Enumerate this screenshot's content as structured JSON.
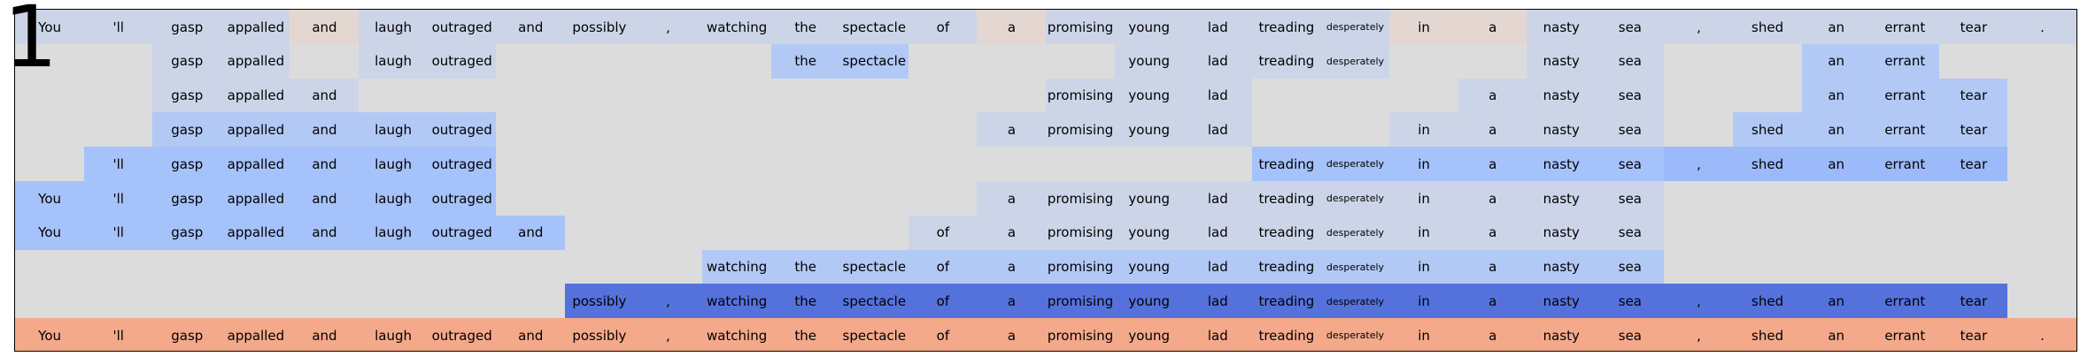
{
  "panel_number": "1",
  "tokens": [
    "You",
    "'ll",
    "gasp",
    "appalled",
    "and",
    "laugh",
    "outraged",
    "and",
    "possibly",
    ",",
    "watching",
    "the",
    "spectacle",
    "of",
    "a",
    "promising",
    "young",
    "lad",
    "treading",
    "desperately",
    "in",
    "a",
    "nasty",
    "sea",
    ",",
    "shed",
    "an",
    "errant",
    "tear",
    "."
  ],
  "small_tokens": [
    19
  ],
  "row_count": 10,
  "palette": {
    "0": "#dcdcdc",
    "1": "#ccd5e8",
    "2": "#e4d7d1",
    "3": "#b2c9f6",
    "4": "#a6c2fa",
    "5": "#9cb9fa",
    "6": "#5572dc",
    "7": "#f4a98b"
  },
  "rows": [
    [
      1,
      1,
      1,
      1,
      2,
      1,
      1,
      1,
      1,
      1,
      1,
      1,
      1,
      1,
      2,
      1,
      1,
      1,
      1,
      1,
      2,
      2,
      1,
      1,
      1,
      1,
      1,
      1,
      1,
      1
    ],
    [
      0,
      0,
      1,
      1,
      0,
      1,
      1,
      0,
      0,
      0,
      0,
      3,
      3,
      0,
      0,
      0,
      1,
      1,
      1,
      1,
      0,
      0,
      1,
      1,
      0,
      0,
      3,
      3,
      0,
      0
    ],
    [
      0,
      0,
      1,
      1,
      1,
      0,
      0,
      0,
      0,
      0,
      0,
      0,
      0,
      0,
      0,
      1,
      1,
      1,
      0,
      0,
      0,
      1,
      1,
      1,
      0,
      0,
      3,
      3,
      3,
      0
    ],
    [
      0,
      0,
      3,
      3,
      3,
      3,
      3,
      0,
      0,
      0,
      0,
      0,
      0,
      0,
      1,
      1,
      1,
      1,
      0,
      0,
      1,
      1,
      1,
      1,
      0,
      3,
      3,
      3,
      3,
      0
    ],
    [
      0,
      4,
      4,
      4,
      4,
      4,
      4,
      0,
      0,
      0,
      0,
      0,
      0,
      0,
      0,
      0,
      0,
      0,
      4,
      4,
      4,
      4,
      4,
      4,
      5,
      5,
      5,
      5,
      5,
      0
    ],
    [
      4,
      4,
      4,
      4,
      4,
      4,
      4,
      0,
      0,
      0,
      0,
      0,
      0,
      0,
      1,
      1,
      1,
      1,
      1,
      1,
      1,
      1,
      1,
      1,
      0,
      0,
      0,
      0,
      0,
      0
    ],
    [
      4,
      4,
      4,
      4,
      4,
      4,
      4,
      4,
      0,
      0,
      0,
      0,
      0,
      1,
      1,
      1,
      1,
      1,
      1,
      1,
      1,
      1,
      1,
      1,
      0,
      0,
      0,
      0,
      0,
      0
    ],
    [
      0,
      0,
      0,
      0,
      0,
      0,
      0,
      0,
      0,
      0,
      3,
      3,
      3,
      3,
      3,
      3,
      3,
      3,
      3,
      3,
      3,
      3,
      3,
      3,
      0,
      0,
      0,
      0,
      0,
      0
    ],
    [
      0,
      0,
      0,
      0,
      0,
      0,
      0,
      0,
      6,
      6,
      6,
      6,
      6,
      6,
      6,
      6,
      6,
      6,
      6,
      6,
      6,
      6,
      6,
      6,
      6,
      6,
      6,
      6,
      6,
      0
    ],
    [
      7,
      7,
      7,
      7,
      7,
      7,
      7,
      7,
      7,
      7,
      7,
      7,
      7,
      7,
      7,
      7,
      7,
      7,
      7,
      7,
      7,
      7,
      7,
      7,
      7,
      7,
      7,
      7,
      7,
      7
    ]
  ],
  "labels_shown": [
    [
      1,
      1,
      1,
      1,
      1,
      1,
      1,
      1,
      1,
      1,
      1,
      1,
      1,
      1,
      1,
      1,
      1,
      1,
      1,
      1,
      1,
      1,
      1,
      1,
      1,
      1,
      1,
      1,
      1,
      1
    ],
    [
      0,
      0,
      1,
      1,
      0,
      1,
      1,
      0,
      0,
      0,
      0,
      1,
      1,
      0,
      0,
      0,
      1,
      1,
      1,
      1,
      0,
      0,
      1,
      1,
      0,
      0,
      1,
      1,
      0,
      0
    ],
    [
      0,
      0,
      1,
      1,
      1,
      0,
      0,
      0,
      0,
      0,
      0,
      0,
      0,
      0,
      0,
      1,
      1,
      1,
      0,
      0,
      0,
      1,
      1,
      1,
      0,
      0,
      1,
      1,
      1,
      0
    ],
    [
      0,
      0,
      1,
      1,
      1,
      1,
      1,
      0,
      0,
      0,
      0,
      0,
      0,
      0,
      1,
      1,
      1,
      1,
      0,
      0,
      1,
      1,
      1,
      1,
      0,
      1,
      1,
      1,
      1,
      0
    ],
    [
      0,
      1,
      1,
      1,
      1,
      1,
      1,
      0,
      0,
      0,
      0,
      0,
      0,
      0,
      0,
      0,
      0,
      0,
      1,
      1,
      1,
      1,
      1,
      1,
      1,
      1,
      1,
      1,
      1,
      0
    ],
    [
      1,
      1,
      1,
      1,
      1,
      1,
      1,
      0,
      0,
      0,
      0,
      0,
      0,
      0,
      1,
      1,
      1,
      1,
      1,
      1,
      1,
      1,
      1,
      1,
      0,
      0,
      0,
      0,
      0,
      0
    ],
    [
      1,
      1,
      1,
      1,
      1,
      1,
      1,
      1,
      0,
      0,
      0,
      0,
      0,
      1,
      1,
      1,
      1,
      1,
      1,
      1,
      1,
      1,
      1,
      1,
      0,
      0,
      0,
      0,
      0,
      0
    ],
    [
      0,
      0,
      0,
      0,
      0,
      0,
      0,
      0,
      0,
      0,
      1,
      1,
      1,
      1,
      1,
      1,
      1,
      1,
      1,
      1,
      1,
      1,
      1,
      1,
      0,
      0,
      0,
      0,
      0,
      0
    ],
    [
      0,
      0,
      0,
      0,
      0,
      0,
      0,
      0,
      1,
      1,
      1,
      1,
      1,
      1,
      1,
      1,
      1,
      1,
      1,
      1,
      1,
      1,
      1,
      1,
      1,
      1,
      1,
      1,
      1,
      0
    ],
    [
      1,
      1,
      1,
      1,
      1,
      1,
      1,
      1,
      1,
      1,
      1,
      1,
      1,
      1,
      1,
      1,
      1,
      1,
      1,
      1,
      1,
      1,
      1,
      1,
      1,
      1,
      1,
      1,
      1,
      1
    ]
  ]
}
